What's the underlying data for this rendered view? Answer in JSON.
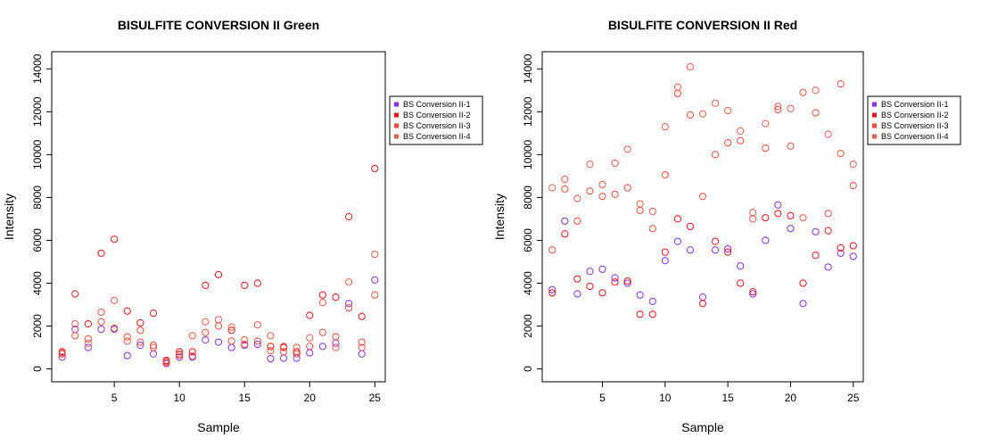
{
  "chart_data": [
    {
      "type": "scatter",
      "title": "BISULFITE CONVERSION II Green",
      "xlabel": "Sample",
      "ylabel": "Intensity",
      "xlim": [
        0.2,
        25.8
      ],
      "ylim": [
        -600,
        14800
      ],
      "xticks": [
        5,
        10,
        15,
        20,
        25
      ],
      "yticks": [
        0,
        2000,
        4000,
        6000,
        8000,
        10000,
        12000,
        14000
      ],
      "legend_position": "right",
      "series": [
        {
          "name": "BS Conversion II-1",
          "color": "#8B2BE2",
          "x": [
            1,
            2,
            3,
            4,
            5,
            6,
            7,
            8,
            9,
            10,
            11,
            12,
            13,
            14,
            15,
            16,
            17,
            18,
            19,
            20,
            21,
            22,
            23,
            24,
            25
          ],
          "y": [
            550,
            1850,
            1000,
            1850,
            1850,
            620,
            1100,
            700,
            250,
            550,
            550,
            1350,
            1250,
            1000,
            1100,
            1150,
            480,
            500,
            500,
            750,
            1050,
            1200,
            3050,
            700,
            4150
          ]
        },
        {
          "name": "BS Conversion II-2",
          "color": "#E8111A",
          "x": [
            1,
            2,
            3,
            4,
            5,
            6,
            7,
            8,
            9,
            10,
            11,
            12,
            13,
            14,
            15,
            16,
            17,
            18,
            19,
            20,
            21,
            22,
            23,
            24,
            25
          ],
          "y": [
            800,
            3500,
            2100,
            5400,
            6050,
            2700,
            2150,
            2600,
            400,
            800,
            800,
            3900,
            4400,
            1800,
            3900,
            4000,
            1050,
            1000,
            800,
            2500,
            3450,
            3350,
            7100,
            2450,
            9350
          ]
        },
        {
          "name": "BS Conversion II-3",
          "color": "#EF4A3C",
          "x": [
            1,
            2,
            3,
            4,
            5,
            6,
            7,
            8,
            9,
            10,
            11,
            12,
            13,
            14,
            15,
            16,
            17,
            18,
            19,
            20,
            21,
            22,
            23,
            24,
            25
          ],
          "y": [
            700,
            1550,
            1400,
            2200,
            1900,
            1500,
            1800,
            1100,
            350,
            650,
            600,
            1700,
            2000,
            1300,
            1350,
            1300,
            850,
            1050,
            700,
            1050,
            1700,
            1500,
            2850,
            1250,
            3450
          ]
        },
        {
          "name": "BS Conversion II-4",
          "color": "#EE5A4C",
          "x": [
            1,
            2,
            3,
            4,
            5,
            6,
            7,
            8,
            9,
            10,
            11,
            12,
            13,
            14,
            15,
            16,
            17,
            18,
            19,
            20,
            21,
            22,
            23,
            24,
            25
          ],
          "y": [
            750,
            2100,
            1200,
            2650,
            3200,
            1300,
            1250,
            1000,
            300,
            700,
            1550,
            2200,
            2300,
            1950,
            1150,
            2050,
            1550,
            800,
            1000,
            1450,
            3100,
            1000,
            4050,
            1000,
            5350
          ]
        }
      ]
    },
    {
      "type": "scatter",
      "title": "BISULFITE CONVERSION II Red",
      "xlabel": "Sample",
      "ylabel": "Intensity",
      "xlim": [
        0.2,
        25.8
      ],
      "ylim": [
        -600,
        14800
      ],
      "xticks": [
        5,
        10,
        15,
        20,
        25
      ],
      "yticks": [
        0,
        2000,
        4000,
        6000,
        8000,
        10000,
        12000,
        14000
      ],
      "legend_position": "right",
      "series": [
        {
          "name": "BS Conversion II-1",
          "color": "#8B2BE2",
          "x": [
            1,
            2,
            3,
            4,
            5,
            6,
            7,
            8,
            9,
            10,
            11,
            12,
            13,
            14,
            15,
            16,
            17,
            18,
            19,
            20,
            21,
            22,
            23,
            24,
            25
          ],
          "y": [
            3700,
            6900,
            3500,
            4550,
            4650,
            4250,
            4000,
            3450,
            3150,
            5050,
            5950,
            5550,
            3350,
            5550,
            5600,
            4800,
            3500,
            6000,
            7650,
            6550,
            3050,
            6400,
            4750,
            5400,
            5250
          ]
        },
        {
          "name": "BS Conversion II-2",
          "color": "#E8111A",
          "x": [
            1,
            2,
            3,
            4,
            5,
            6,
            7,
            8,
            9,
            10,
            11,
            12,
            13,
            14,
            15,
            16,
            17,
            18,
            19,
            20,
            21,
            22,
            23,
            24,
            25
          ],
          "y": [
            3550,
            6300,
            4200,
            3850,
            3550,
            4050,
            4100,
            2550,
            2550,
            5450,
            7000,
            6650,
            3050,
            5950,
            5450,
            4000,
            3600,
            7050,
            7250,
            7150,
            4000,
            5300,
            6450,
            5650,
            5750
          ]
        },
        {
          "name": "BS Conversion II-3",
          "color": "#EF4A3C",
          "x": [
            1,
            2,
            3,
            4,
            5,
            6,
            7,
            8,
            9,
            10,
            11,
            12,
            13,
            14,
            15,
            16,
            17,
            18,
            19,
            20,
            21,
            22,
            23,
            24,
            25
          ],
          "y": [
            5550,
            8400,
            6900,
            8300,
            8050,
            8150,
            8450,
            7400,
            6550,
            9050,
            12850,
            11850,
            8050,
            10000,
            10550,
            10650,
            7000,
            10300,
            12100,
            10400,
            12900,
            11950,
            7250,
            10050,
            8550
          ]
        },
        {
          "name": "BS Conversion II-4",
          "color": "#EE5A4C",
          "x": [
            1,
            2,
            3,
            4,
            5,
            6,
            7,
            8,
            9,
            10,
            11,
            12,
            13,
            14,
            15,
            16,
            17,
            18,
            19,
            20,
            21,
            22,
            23,
            24,
            25
          ],
          "y": [
            8450,
            8850,
            7950,
            9550,
            8600,
            9600,
            10250,
            7700,
            7350,
            11300,
            13150,
            14100,
            11900,
            12400,
            12050,
            11100,
            7300,
            11450,
            12250,
            12150,
            7050,
            13000,
            10950,
            13300,
            9550
          ]
        }
      ]
    }
  ]
}
